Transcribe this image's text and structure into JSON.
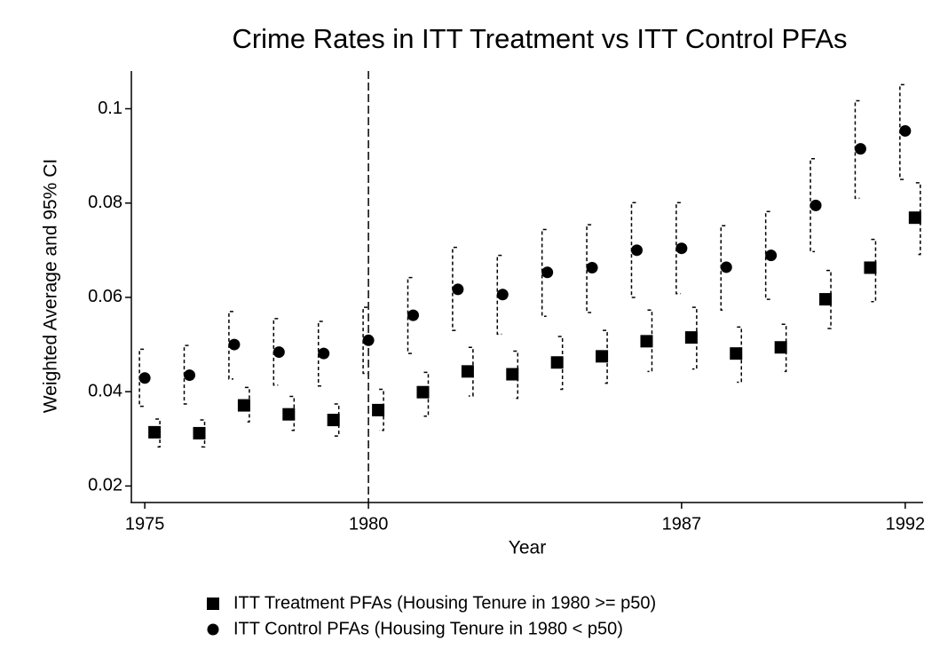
{
  "chart_data": {
    "type": "errorbar_scatter",
    "title": "Crime Rates in ITT Treatment vs ITT Control PFAs",
    "x_label": "Year",
    "y_label": "Weighted Average and 95% CI",
    "x": [
      1975,
      1976,
      1977,
      1978,
      1979,
      1980,
      1981,
      1982,
      1983,
      1984,
      1985,
      1986,
      1987,
      1988,
      1989,
      1990,
      1991,
      1992
    ],
    "xlim": [
      1974.7,
      1992.4
    ],
    "xticks": [
      1975,
      1980,
      1987,
      1992
    ],
    "ylim": [
      0.0165,
      0.108
    ],
    "yticks": [
      0.02,
      0.04,
      0.06,
      0.08,
      0.1
    ],
    "vline": 1980,
    "series": [
      {
        "name": "ITT Treatment PFAs (Housing Tenure in 1980 >= p50)",
        "color": "#000000",
        "marker": "square",
        "values": [
          0.0314,
          0.0312,
          0.0371,
          0.0352,
          0.034,
          0.0361,
          0.0399,
          0.0443,
          0.0437,
          0.0462,
          0.0475,
          0.0507,
          0.0515,
          0.0481,
          0.0494,
          0.0596,
          0.0663,
          0.0769
        ],
        "lower": [
          0.0283,
          0.0283,
          0.0336,
          0.0318,
          0.0306,
          0.0318,
          0.0348,
          0.0391,
          0.0386,
          0.0405,
          0.0418,
          0.0443,
          0.0448,
          0.042,
          0.0443,
          0.0534,
          0.0591,
          0.0691
        ],
        "upper": [
          0.0342,
          0.034,
          0.0409,
          0.039,
          0.0374,
          0.0405,
          0.0441,
          0.0494,
          0.0486,
          0.0517,
          0.053,
          0.0573,
          0.0579,
          0.0537,
          0.0543,
          0.0657,
          0.0723,
          0.0843
        ]
      },
      {
        "name": "ITT Control PFAs (Housing Tenure in 1980 < p50)",
        "color": "#000000",
        "marker": "circle",
        "values": [
          0.0429,
          0.0435,
          0.05,
          0.0484,
          0.0481,
          0.0509,
          0.0562,
          0.0617,
          0.0606,
          0.0653,
          0.0663,
          0.07,
          0.0704,
          0.0664,
          0.0689,
          0.0795,
          0.0915,
          0.0953
        ],
        "lower": [
          0.0369,
          0.0374,
          0.0427,
          0.0414,
          0.0412,
          0.0439,
          0.0481,
          0.053,
          0.0522,
          0.056,
          0.0568,
          0.06,
          0.0608,
          0.0573,
          0.0596,
          0.0697,
          0.081,
          0.085
        ],
        "upper": [
          0.049,
          0.0498,
          0.057,
          0.0555,
          0.0549,
          0.0579,
          0.0642,
          0.0706,
          0.0689,
          0.0744,
          0.0754,
          0.0801,
          0.0801,
          0.0752,
          0.0782,
          0.0894,
          0.1017,
          0.1051
        ]
      }
    ]
  }
}
